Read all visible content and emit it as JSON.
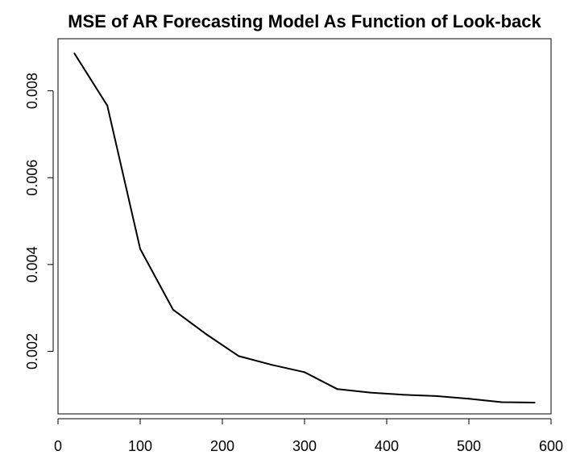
{
  "chart_data": {
    "type": "line",
    "title": "MSE of AR Forecasting Model As Function of Look-back",
    "xlabel": "",
    "ylabel": "",
    "xlim": [
      0,
      600
    ],
    "ylim": [
      0.00056,
      0.0092
    ],
    "x_ticks": [
      0,
      100,
      200,
      300,
      400,
      500,
      600
    ],
    "y_ticks": [
      0.002,
      0.004,
      0.006,
      0.008
    ],
    "x_tick_labels": [
      "0",
      "100",
      "200",
      "300",
      "400",
      "500",
      "600"
    ],
    "y_tick_labels": [
      "0.002",
      "0.004",
      "0.006",
      "0.008"
    ],
    "grid": false,
    "legend": "none",
    "series": [
      {
        "color": "#000000",
        "x": [
          20,
          60,
          100,
          140,
          180,
          220,
          260,
          300,
          340,
          380,
          420,
          460,
          500,
          540,
          580
        ],
        "y": [
          0.00886,
          0.00766,
          0.00436,
          0.00296,
          0.0024,
          0.00189,
          0.00169,
          0.00152,
          0.00113,
          0.00105,
          0.001,
          0.00097,
          0.00091,
          0.00083,
          0.00082
        ]
      }
    ]
  }
}
